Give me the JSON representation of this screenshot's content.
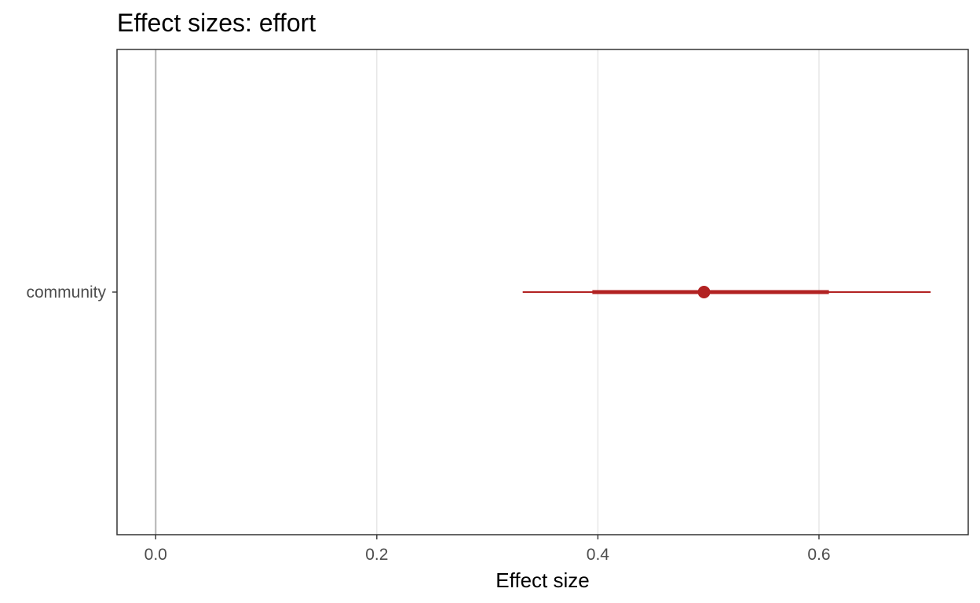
{
  "chart_data": {
    "type": "scatter",
    "title": "Effect sizes: effort",
    "xlabel": "Effect size",
    "ylabel": "",
    "xlim": [
      -0.035,
      0.735
    ],
    "x_ticks": [
      0.0,
      0.2,
      0.4,
      0.6
    ],
    "x_tick_labels": [
      "0.0",
      "0.2",
      "0.4",
      "0.6"
    ],
    "reference_line": 0.0,
    "categories": [
      "community"
    ],
    "points": [
      {
        "category": "community",
        "estimate": 0.496,
        "inner_interval": [
          0.395,
          0.609
        ],
        "outer_interval": [
          0.332,
          0.701
        ]
      }
    ],
    "grid": true,
    "legend": "none",
    "colors": {
      "point": "#b22222",
      "interval": "#b22222",
      "grid": "#e5e5e5",
      "reference": "#b3b3b3",
      "panel_border": "#333333"
    }
  }
}
